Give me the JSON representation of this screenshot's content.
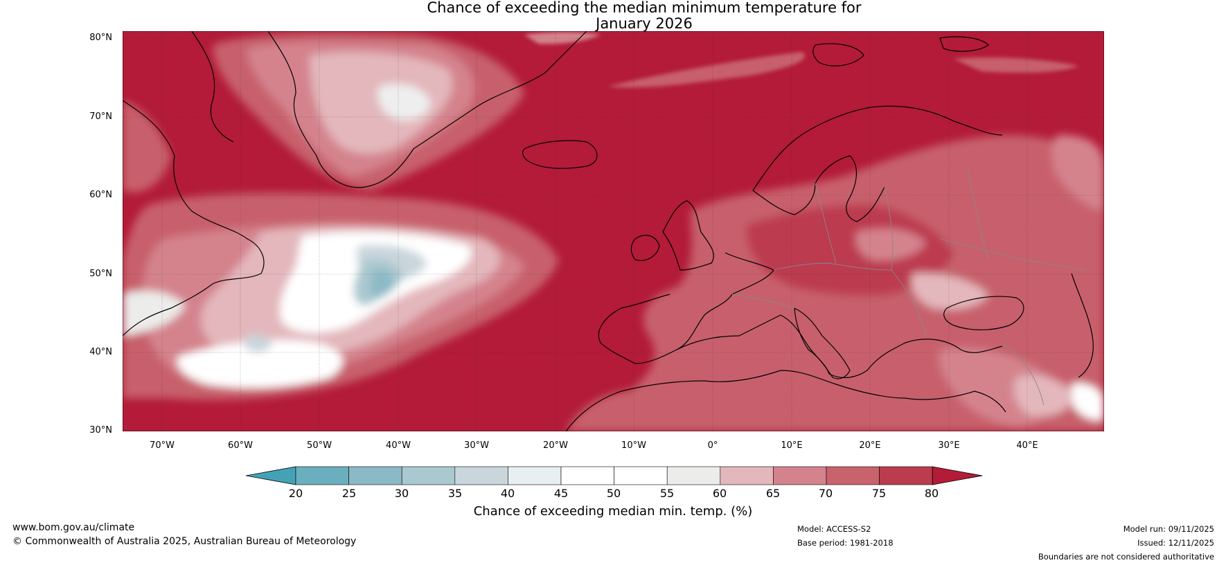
{
  "title": {
    "line1": "Chance of exceeding the median minimum temperature for",
    "line2": "January 2026"
  },
  "map": {
    "lat_labels": [
      "80°N",
      "70°N",
      "60°N",
      "50°N",
      "40°N",
      "30°N"
    ],
    "lon_labels": [
      "70°W",
      "60°W",
      "50°W",
      "40°W",
      "30°W",
      "20°W",
      "10°W",
      "0°",
      "10°E",
      "20°E",
      "30°E",
      "40°E"
    ],
    "colors": {
      "ocean_dominant": "#b31b38",
      "land": "#c7606c",
      "coastline": "#000000",
      "border": "#888888"
    }
  },
  "colorbar": {
    "ticks": [
      "20",
      "25",
      "30",
      "35",
      "40",
      "45",
      "50",
      "55",
      "60",
      "65",
      "70",
      "75",
      "80"
    ],
    "colors": [
      "#45a2b6",
      "#6bafbe",
      "#8bbac6",
      "#aac8cf",
      "#c9d6dc",
      "#e8eff1",
      "#ffffff",
      "#ffffff",
      "#ececea",
      "#e3b7bc",
      "#d4838d",
      "#c8636d",
      "#bb3c4e",
      "#b31b38"
    ],
    "title": "Chance of exceeding median min. temp. (%)"
  },
  "footer": {
    "website": "www.bom.gov.au/climate",
    "copyright": "© Commonwealth of Australia 2025, Australian Bureau of Meteorology",
    "model": "Model: ACCESS-S2",
    "base_period": "Base period: 1981-2018",
    "model_run": "Model run: 09/11/2025",
    "issued": "Issued: 12/11/2025",
    "disclaimer": "Boundaries are not considered authoritative"
  }
}
